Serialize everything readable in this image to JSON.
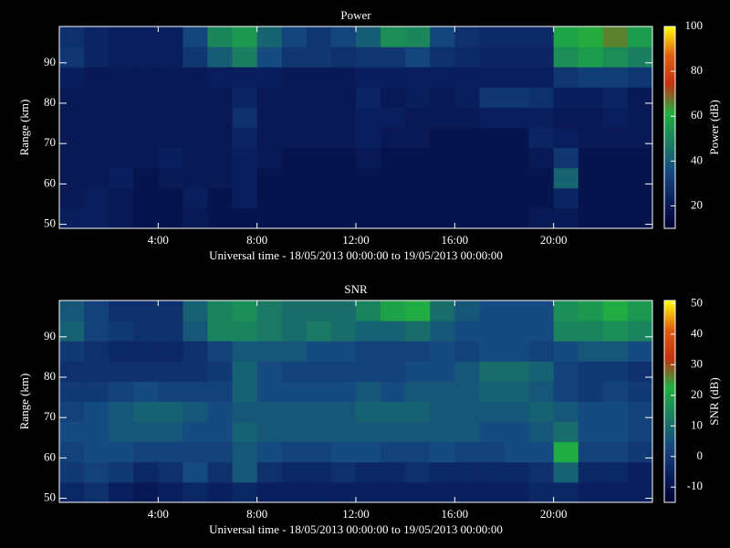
{
  "chart_data": [
    {
      "type": "heatmap",
      "title": "Power",
      "y_label": "Range (km)",
      "x_label": "Universal time - 18/05/2013 00:00:00 to 19/05/2013 00:00:00",
      "colorbar_label": "Power (dB)",
      "x": [
        0,
        1,
        2,
        3,
        4,
        5,
        6,
        7,
        8,
        9,
        10,
        11,
        12,
        13,
        14,
        15,
        16,
        17,
        18,
        19,
        20,
        21,
        22,
        23
      ],
      "y": [
        49,
        54,
        59,
        64,
        69,
        74,
        79,
        84,
        89,
        94
      ],
      "values": [
        [
          22,
          22,
          20,
          18,
          18,
          20,
          18,
          18,
          18,
          18,
          18,
          18,
          18,
          18,
          18,
          18,
          18,
          18,
          18,
          20,
          20,
          18,
          18,
          18
        ],
        [
          20,
          22,
          20,
          18,
          18,
          22,
          18,
          22,
          18,
          18,
          18,
          18,
          18,
          18,
          18,
          18,
          18,
          18,
          18,
          18,
          24,
          18,
          18,
          18
        ],
        [
          20,
          20,
          22,
          18,
          20,
          20,
          20,
          22,
          18,
          18,
          18,
          18,
          18,
          18,
          18,
          18,
          18,
          18,
          18,
          18,
          42,
          18,
          18,
          18
        ],
        [
          20,
          20,
          20,
          20,
          22,
          20,
          20,
          22,
          20,
          18,
          18,
          18,
          20,
          18,
          18,
          18,
          18,
          18,
          18,
          20,
          30,
          18,
          18,
          18
        ],
        [
          20,
          20,
          20,
          20,
          20,
          20,
          20,
          24,
          20,
          20,
          20,
          20,
          22,
          20,
          20,
          18,
          18,
          18,
          18,
          24,
          22,
          20,
          20,
          20
        ],
        [
          20,
          20,
          20,
          20,
          20,
          20,
          20,
          28,
          20,
          20,
          20,
          20,
          22,
          22,
          20,
          20,
          20,
          22,
          22,
          22,
          20,
          20,
          22,
          20
        ],
        [
          20,
          20,
          20,
          20,
          20,
          20,
          20,
          24,
          20,
          20,
          20,
          20,
          24,
          20,
          22,
          20,
          22,
          30,
          30,
          28,
          22,
          22,
          24,
          20
        ],
        [
          22,
          20,
          20,
          20,
          20,
          20,
          22,
          22,
          22,
          20,
          20,
          20,
          22,
          22,
          22,
          22,
          22,
          22,
          22,
          22,
          30,
          32,
          32,
          30
        ],
        [
          30,
          24,
          22,
          22,
          22,
          30,
          40,
          48,
          36,
          30,
          30,
          28,
          30,
          30,
          34,
          28,
          26,
          24,
          24,
          24,
          52,
          56,
          52,
          48
        ],
        [
          28,
          24,
          22,
          22,
          22,
          34,
          50,
          55,
          42,
          34,
          30,
          34,
          40,
          52,
          50,
          34,
          28,
          26,
          26,
          26,
          58,
          62,
          66,
          56
        ]
      ],
      "xlim": [
        0,
        24
      ],
      "xticks": [
        {
          "value": 4,
          "label": "4:00"
        },
        {
          "value": 8,
          "label": "8:00"
        },
        {
          "value": 12,
          "label": "12:00"
        },
        {
          "value": 16,
          "label": "16:00"
        },
        {
          "value": 20,
          "label": "20:00"
        }
      ],
      "ylim": [
        49,
        99
      ],
      "yticks": [
        50,
        60,
        70,
        80,
        90
      ],
      "zlim": [
        10,
        100
      ],
      "zticks": [
        20,
        40,
        60,
        80,
        100
      ],
      "colorscale": [
        "#000030",
        "#0a2060",
        "#154a80",
        "#1a8060",
        "#20b040",
        "#c83010",
        "#e06010",
        "#ffff00"
      ]
    },
    {
      "type": "heatmap",
      "title": "SNR",
      "y_label": "Range (km)",
      "x_label": "Universal time - 18/05/2013 00:00:00 to 19/05/2013 00:00:00",
      "colorbar_label": "SNR (dB)",
      "x": [
        0,
        1,
        2,
        3,
        4,
        5,
        6,
        7,
        8,
        9,
        10,
        11,
        12,
        13,
        14,
        15,
        16,
        17,
        18,
        19,
        20,
        21,
        22,
        23
      ],
      "y": [
        49,
        54,
        59,
        64,
        69,
        74,
        79,
        84,
        89,
        94
      ],
      "values": [
        [
          -4,
          -2,
          -6,
          -8,
          -6,
          -4,
          -6,
          -4,
          -6,
          -6,
          -6,
          -6,
          -6,
          -6,
          -6,
          -6,
          -6,
          -6,
          -6,
          -4,
          -4,
          -6,
          -6,
          -6
        ],
        [
          0,
          2,
          0,
          -4,
          -2,
          4,
          -2,
          6,
          -2,
          -4,
          -4,
          -2,
          -4,
          -4,
          -2,
          -4,
          -4,
          -4,
          -4,
          -2,
          8,
          -4,
          -4,
          -6
        ],
        [
          2,
          4,
          4,
          2,
          2,
          2,
          2,
          6,
          4,
          2,
          2,
          4,
          4,
          2,
          2,
          4,
          2,
          2,
          4,
          4,
          22,
          2,
          2,
          0
        ],
        [
          4,
          4,
          6,
          6,
          6,
          4,
          4,
          8,
          6,
          6,
          6,
          6,
          6,
          6,
          6,
          6,
          6,
          4,
          4,
          6,
          10,
          4,
          4,
          2
        ],
        [
          2,
          4,
          6,
          8,
          8,
          6,
          4,
          6,
          6,
          6,
          6,
          6,
          8,
          8,
          8,
          6,
          6,
          6,
          6,
          8,
          6,
          4,
          4,
          2
        ],
        [
          0,
          0,
          2,
          4,
          2,
          2,
          2,
          8,
          4,
          4,
          4,
          4,
          6,
          4,
          6,
          6,
          6,
          8,
          8,
          6,
          2,
          0,
          2,
          0
        ],
        [
          -2,
          -2,
          -2,
          -2,
          -2,
          -2,
          0,
          8,
          4,
          2,
          2,
          2,
          2,
          2,
          4,
          4,
          6,
          10,
          10,
          8,
          2,
          0,
          0,
          -2
        ],
        [
          0,
          -2,
          -4,
          -4,
          -4,
          -2,
          2,
          6,
          6,
          6,
          4,
          4,
          2,
          2,
          2,
          4,
          2,
          4,
          4,
          2,
          4,
          6,
          6,
          4
        ],
        [
          8,
          2,
          0,
          -2,
          -2,
          6,
          14,
          14,
          12,
          10,
          12,
          10,
          8,
          8,
          10,
          6,
          4,
          4,
          4,
          4,
          14,
          14,
          16,
          14
        ],
        [
          6,
          2,
          -2,
          -2,
          -2,
          8,
          14,
          16,
          12,
          10,
          10,
          10,
          14,
          20,
          22,
          10,
          6,
          4,
          4,
          4,
          16,
          18,
          22,
          18
        ]
      ],
      "xlim": [
        0,
        24
      ],
      "xticks": [
        {
          "value": 4,
          "label": "4:00"
        },
        {
          "value": 8,
          "label": "8:00"
        },
        {
          "value": 12,
          "label": "12:00"
        },
        {
          "value": 16,
          "label": "16:00"
        },
        {
          "value": 20,
          "label": "20:00"
        }
      ],
      "ylim": [
        49,
        99
      ],
      "yticks": [
        50,
        60,
        70,
        80,
        90
      ],
      "zlim": [
        -15,
        51
      ],
      "zticks": [
        -10,
        0,
        10,
        20,
        30,
        40,
        50
      ],
      "colorscale": [
        "#000030",
        "#0a2060",
        "#154a80",
        "#1a8060",
        "#20b040",
        "#c83010",
        "#e06010",
        "#ffff00"
      ]
    }
  ]
}
